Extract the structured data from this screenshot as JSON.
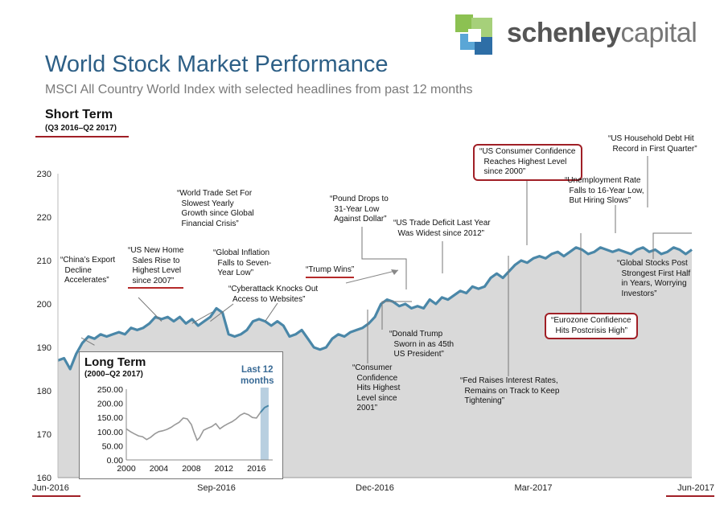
{
  "header": {
    "title": "World Stock Market Performance",
    "subtitle": "MSCI All Country World Index with selected headlines from past 12 months",
    "section_label": "Short Term",
    "section_range": "(Q3 2016–Q2 2017)"
  },
  "logo": {
    "bold": "schenley",
    "light": "capital",
    "colors": [
      "#5aa6d6",
      "#8cc152",
      "#2e6ea6"
    ]
  },
  "colors": {
    "line": "#4a87a8",
    "fill": "#d9d9d9",
    "accent_red": "#a01f26",
    "inset_band": "#b8cfe0"
  },
  "chart_data": [
    {
      "type": "area",
      "title": "World Stock Market Performance",
      "ylim": [
        160,
        230
      ],
      "yticks": [
        160,
        170,
        180,
        190,
        200,
        210,
        220,
        230
      ],
      "xlim": [
        0,
        52
      ],
      "xtick_labels": [
        {
          "label": "Jun-2016",
          "x": 0
        },
        {
          "label": "Sep-2016",
          "x": 13
        },
        {
          "label": "Dec-2016",
          "x": 26
        },
        {
          "label": "Mar-2017",
          "x": 39
        },
        {
          "label": "Jun-2017",
          "x": 52
        }
      ],
      "grid": false,
      "series": [
        {
          "x": [
            0,
            0.5,
            1,
            1.5,
            2,
            2.5,
            3,
            3.5,
            4,
            4.5,
            5,
            5.5,
            6,
            6.5,
            7,
            7.5,
            8,
            8.5,
            9,
            9.5,
            10,
            10.5,
            11,
            11.5,
            12,
            12.5,
            13,
            13.5,
            14,
            14.5,
            15,
            15.5,
            16,
            16.5,
            17,
            17.5,
            18,
            18.5,
            19,
            19.5,
            20,
            20.5,
            21,
            21.5,
            22,
            22.5,
            23,
            23.5,
            24,
            24.5,
            25,
            25.5,
            26,
            26.5,
            27,
            27.5,
            28,
            28.5,
            29,
            29.5,
            30,
            30.5,
            31,
            31.5,
            32,
            32.5,
            33,
            33.5,
            34,
            34.5,
            35,
            35.5,
            36,
            36.5,
            37,
            37.5,
            38,
            38.5,
            39,
            39.5,
            40,
            40.5,
            41,
            41.5,
            42,
            42.5,
            43,
            43.5,
            44,
            44.5,
            45,
            45.5,
            46,
            46.5,
            47,
            47.5,
            48,
            48.5,
            49,
            49.5,
            50,
            50.5,
            51,
            51.5,
            52
          ],
          "values": [
            187,
            187.5,
            185,
            188.5,
            191,
            192.5,
            192,
            193,
            192.5,
            193,
            193.5,
            193,
            194.5,
            194,
            194.5,
            195.5,
            197,
            196.5,
            197,
            196,
            197,
            195.5,
            196.5,
            195,
            196,
            197,
            199,
            198,
            193,
            192.5,
            193,
            194,
            196,
            196.5,
            196,
            195,
            196,
            195,
            192.5,
            193,
            194,
            192,
            190,
            189.5,
            190,
            192,
            193,
            192.5,
            193.5,
            194,
            194.5,
            195.5,
            197,
            200,
            201,
            200.5,
            199.5,
            200,
            199,
            199.5,
            199,
            201,
            200,
            201.5,
            201,
            202,
            203,
            202.5,
            204,
            203.5,
            204,
            206,
            207,
            206,
            207.5,
            209,
            210,
            209.5,
            210.5,
            211,
            210.5,
            211.5,
            212,
            211,
            212,
            213,
            212.5,
            211.5,
            212,
            213,
            212.5,
            212,
            212.5,
            212,
            211.5,
            212.5,
            213,
            212,
            212.5,
            211.5,
            212,
            213,
            212.5,
            211.5,
            212.5
          ]
        }
      ],
      "annotations": [
        {
          "text": "“China’s Export\n  Decline\n  Accelerates”",
          "x": 3,
          "y": 190.5
        },
        {
          "text": "“US New Home\n  Sales Rise to\n  Highest Level\n  since 2007”",
          "x": 8.5,
          "y": 196
        },
        {
          "text": "“World Trade Set For\n  Slowest Yearly\n  Growth since Global\n  Financial Crisis”",
          "x": 11,
          "y": 195.5
        },
        {
          "text": "“Global Inflation\n  Falls to Seven-\n  Year Low”",
          "x": 12.5,
          "y": 196
        },
        {
          "text": "“Cyberattack Knocks Out\n  Access to Websites”",
          "x": 17,
          "y": 196
        },
        {
          "text": "“Trump Wins”",
          "x": 22.5,
          "y": 192
        },
        {
          "text": "“Pound Drops to\n  31-Year Low\n  Against Dollar”",
          "x": 19,
          "y": 192
        },
        {
          "text": "“Donald Trump\n  Sworn in as 45th\n  US President”",
          "x": 28.5,
          "y": 199
        },
        {
          "text": "“Consumer\n  Confidence\n  Hits Highest\n  Level since\n  2001”",
          "x": 28,
          "y": 199
        },
        {
          "text": "“US Trade Deficit Last Year\n  Was Widest since 2012”",
          "x": 31,
          "y": 203
        },
        {
          "text": "“US Consumer Confidence\n  Reaches Highest Level\n  since 2000”",
          "x": 36.5,
          "y": 211
        },
        {
          "text": "“Fed Raises Interest Rates,\n  Remains on Track to Keep\n  Tightening”",
          "x": 36,
          "y": 210.5
        },
        {
          "text": "“Unemployment Rate\n  Falls to 16-Year Low,\n  But Hiring Slows”",
          "x": 46,
          "y": 218
        },
        {
          "text": "“Eurozone Confidence\n  Hits Postcrisis High”",
          "x": 40.5,
          "y": 216
        },
        {
          "text": "“US Household Debt Hit\n  Record in First Quarter”",
          "x": 48,
          "y": 223
        },
        {
          "text": "“Global Stocks Post\n  Strongest First Half\n  in Years, Worrying\n  Investors”",
          "x": 52,
          "y": 222
        }
      ]
    },
    {
      "type": "line",
      "title": "Long Term",
      "subtitle": "(2000–Q2 2017)",
      "ylim": [
        0,
        250
      ],
      "yticks": [
        "0.00",
        "50.00",
        "100.00",
        "150.00",
        "200.00",
        "250.00"
      ],
      "xlim": [
        2000,
        2018
      ],
      "xticks": [
        "2000",
        "2004",
        "2008",
        "2012",
        "2016"
      ],
      "highlight": {
        "label": "Last 12\nmonths",
        "from": 2016.5,
        "to": 2017.5
      },
      "series": [
        {
          "x": [
            2000,
            2000.5,
            2001,
            2001.5,
            2002,
            2002.5,
            2003,
            2003.5,
            2004,
            2004.5,
            2005,
            2005.5,
            2006,
            2006.5,
            2007,
            2007.5,
            2008,
            2008.3,
            2008.7,
            2009,
            2009.5,
            2010,
            2010.5,
            2011,
            2011.5,
            2012,
            2012.5,
            2013,
            2013.5,
            2014,
            2014.5,
            2015,
            2015.5,
            2016,
            2016.5,
            2017,
            2017.5
          ],
          "values": [
            110,
            100,
            92,
            85,
            82,
            72,
            80,
            92,
            100,
            103,
            108,
            115,
            125,
            133,
            148,
            145,
            125,
            100,
            70,
            78,
            105,
            112,
            118,
            128,
            110,
            120,
            128,
            135,
            145,
            158,
            165,
            160,
            150,
            148,
            168,
            185,
            192
          ]
        }
      ]
    }
  ]
}
